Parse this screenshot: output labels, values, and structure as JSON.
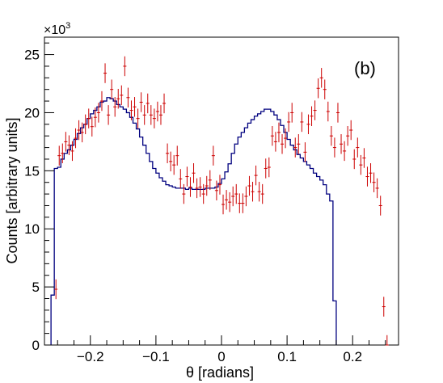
{
  "chart_data": {
    "type": "histogram",
    "panel_label": "(b)",
    "xlabel": "θ [radians]",
    "ylabel": "Counts [arbitrary units]",
    "y_multiplier_label": "×10",
    "y_multiplier_exponent": "3",
    "xlim": [
      -0.27,
      0.27
    ],
    "ylim": [
      0,
      26.5
    ],
    "x_ticks": [
      -0.2,
      -0.1,
      0,
      0.1,
      0.2
    ],
    "x_tick_labels": [
      "−0.2",
      "−0.1",
      "0",
      "0.1",
      "0.2"
    ],
    "y_ticks": [
      0,
      5,
      10,
      15,
      20,
      25
    ],
    "y_tick_labels": [
      "0",
      "5",
      "10",
      "15",
      "20",
      "25"
    ],
    "grid": false,
    "colors": {
      "histogram": "#00007f",
      "data_points": "#cc0000"
    },
    "histogram": {
      "bin_edges_start": -0.26,
      "bin_width": 0.005,
      "values": [
        4.3,
        15.2,
        15.3,
        16.0,
        16.5,
        16.8,
        17.2,
        17.7,
        18.2,
        18.7,
        19.0,
        19.5,
        19.9,
        20.2,
        20.5,
        20.9,
        21.0,
        21.3,
        21.2,
        21.0,
        20.7,
        20.5,
        20.3,
        20.0,
        19.6,
        19.1,
        18.6,
        17.9,
        17.2,
        16.5,
        15.8,
        15.2,
        14.8,
        14.4,
        14.1,
        13.8,
        13.7,
        13.6,
        13.5,
        13.5,
        13.5,
        13.4,
        13.5,
        13.4,
        13.4,
        13.4,
        13.4,
        13.5,
        13.5,
        13.5,
        13.6,
        13.9,
        14.3,
        14.9,
        15.6,
        16.5,
        17.3,
        17.9,
        18.3,
        18.7,
        19.1,
        19.4,
        19.7,
        19.9,
        20.1,
        20.3,
        20.3,
        20.1,
        19.8,
        19.4,
        18.9,
        18.3,
        17.7,
        17.2,
        16.8,
        16.4,
        16.1,
        15.8,
        15.5,
        15.2,
        14.8,
        14.5,
        14.2,
        13.8,
        13.0,
        12.4,
        3.8
      ]
    },
    "data_points": {
      "x": [
        -0.2525,
        -0.2475,
        -0.2425,
        -0.2375,
        -0.2325,
        -0.2275,
        -0.2225,
        -0.2175,
        -0.2125,
        -0.2075,
        -0.2025,
        -0.1975,
        -0.1925,
        -0.1875,
        -0.1825,
        -0.1775,
        -0.1725,
        -0.1675,
        -0.1625,
        -0.1575,
        -0.1525,
        -0.1475,
        -0.1425,
        -0.1375,
        -0.1325,
        -0.1275,
        -0.1225,
        -0.1175,
        -0.1125,
        -0.1075,
        -0.1025,
        -0.0975,
        -0.0925,
        -0.0875,
        -0.0825,
        -0.0775,
        -0.0725,
        -0.0675,
        -0.0625,
        -0.0575,
        -0.0525,
        -0.0475,
        -0.0425,
        -0.0375,
        -0.0325,
        -0.0275,
        -0.0225,
        -0.0175,
        -0.0125,
        -0.0075,
        -0.0025,
        0.0025,
        0.0075,
        0.0125,
        0.0175,
        0.0225,
        0.0275,
        0.0325,
        0.0375,
        0.0425,
        0.0475,
        0.0525,
        0.0575,
        0.0625,
        0.0675,
        0.0725,
        0.0775,
        0.0825,
        0.0875,
        0.0925,
        0.0975,
        0.1025,
        0.1075,
        0.1125,
        0.1175,
        0.1225,
        0.1275,
        0.1325,
        0.1375,
        0.1425,
        0.1475,
        0.1525,
        0.1575,
        0.1625,
        0.1675,
        0.1725,
        0.1775,
        0.1825,
        0.1875,
        0.1925,
        0.1975,
        0.2025,
        0.2075,
        0.2125,
        0.2175,
        0.2225,
        0.2275,
        0.2325,
        0.2375,
        0.2425,
        0.2475,
        0.2525
      ],
      "y": [
        4.8,
        16.3,
        16.5,
        17.5,
        17.2,
        16.7,
        17.8,
        18.5,
        18.3,
        19.0,
        19.5,
        18.8,
        19.6,
        20.0,
        21.0,
        23.4,
        19.8,
        22.0,
        20.5,
        21.2,
        21.5,
        24.0,
        21.3,
        20.2,
        20.5,
        19.5,
        20.9,
        19.8,
        20.8,
        19.8,
        19.5,
        20.1,
        19.8,
        20.8,
        16.5,
        15.8,
        15.5,
        16.3,
        14.3,
        13.0,
        14.5,
        13.6,
        14.8,
        13.5,
        13.6,
        13.0,
        13.7,
        14.2,
        16.3,
        13.3,
        13.8,
        12.1,
        12.5,
        12.3,
        12.8,
        13.0,
        12.2,
        12.2,
        12.8,
        13.7,
        13.2,
        14.6,
        13.2,
        13.0,
        15.2,
        15.3,
        18.0,
        17.5,
        18.3,
        17.3,
        17.8,
        19.2,
        20.0,
        17.0,
        17.3,
        19.2,
        16.6,
        19.0,
        19.7,
        20.2,
        22.1,
        23.0,
        22.0,
        20.1,
        18.0,
        17.0,
        20.0,
        17.3,
        16.7,
        18.0,
        18.5,
        16.0,
        17.0,
        15.5,
        16.1,
        14.5,
        14.8,
        14.0,
        13.5,
        12.0,
        3.3,
        0.0
      ],
      "yerr": 0.85
    }
  }
}
